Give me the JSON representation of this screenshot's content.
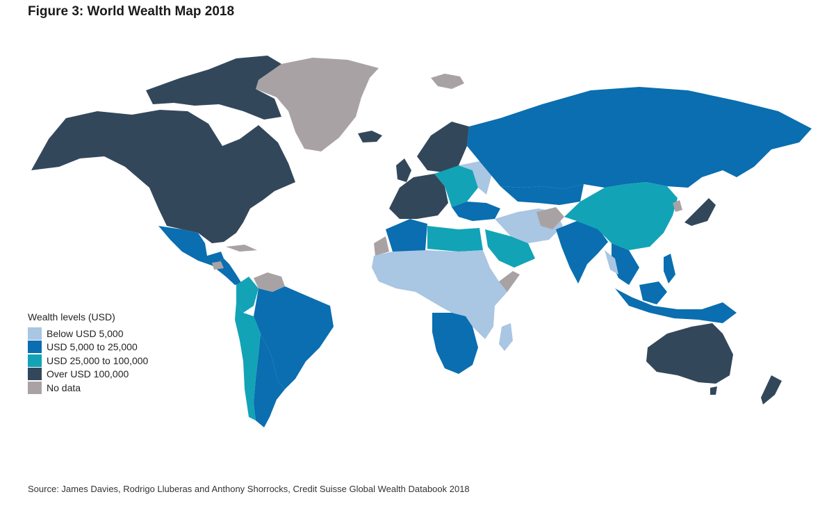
{
  "title": "Figure 3: World Wealth Map 2018",
  "legend": {
    "title": "Wealth levels (USD)",
    "items": [
      {
        "label": "Below USD 5,000",
        "color": "#a9c6e3"
      },
      {
        "label": "USD 5,000 to 25,000",
        "color": "#0a6eb0"
      },
      {
        "label": "USD 25,000 to 100,000",
        "color": "#13a3b6"
      },
      {
        "label": "Over USD 100,000",
        "color": "#33475b"
      },
      {
        "label": "No data",
        "color": "#a9a2a5"
      }
    ]
  },
  "source": "Source: James Davies, Rodrigo Lluberas and Anthony Shorrocks, Credit Suisse Global Wealth Databook 2018",
  "colors": {
    "below_5k": "#a9c6e3",
    "5k_25k": "#0a6eb0",
    "25k_100k": "#13a3b6",
    "over_100k": "#33475b",
    "no_data": "#a9a2a5"
  }
}
